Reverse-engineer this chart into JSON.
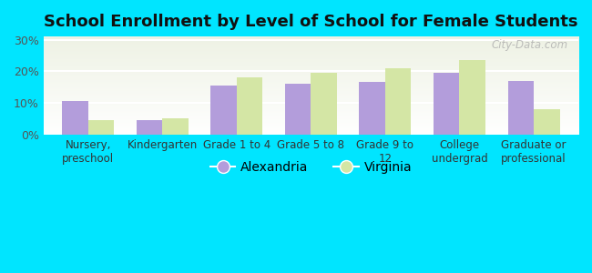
{
  "title": "School Enrollment by Level of School for Female Students",
  "categories": [
    "Nursery,\npreschool",
    "Kindergarten",
    "Grade 1 to 4",
    "Grade 5 to 8",
    "Grade 9 to\n12",
    "College\nundergrad",
    "Graduate or\nprofessional"
  ],
  "alexandria_values": [
    10.5,
    4.5,
    15.5,
    16.0,
    16.5,
    19.5,
    17.0
  ],
  "virginia_values": [
    4.5,
    5.0,
    18.0,
    19.5,
    21.0,
    23.5,
    8.0
  ],
  "alexandria_color": "#b39ddb",
  "virginia_color": "#d4e6a5",
  "background_color": "#00e5ff",
  "plot_bg_top": "#eef2e4",
  "plot_bg_bottom": "#ffffff",
  "ylabel_ticks": [
    0,
    10,
    20,
    30
  ],
  "ylim": [
    0,
    31
  ],
  "bar_width": 0.35,
  "legend_labels": [
    "Alexandria",
    "Virginia"
  ],
  "watermark": "City-Data.com"
}
